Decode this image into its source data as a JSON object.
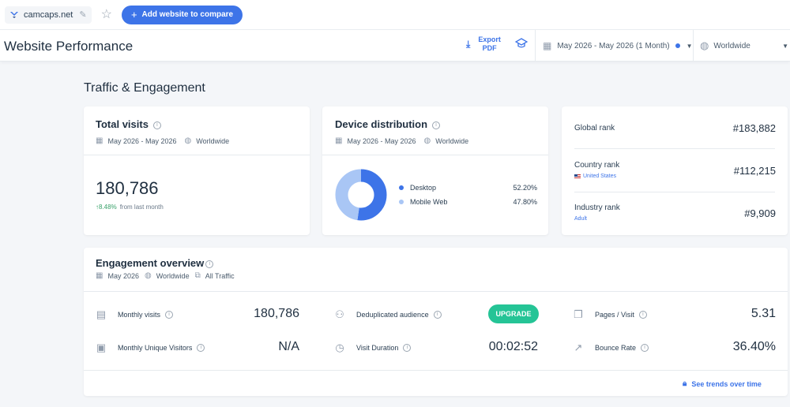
{
  "topbar": {
    "site_name": "camcaps.net",
    "add_button_label": "Add website to compare"
  },
  "header": {
    "title": "Website Performance",
    "export_line1": "Export",
    "export_line2": "PDF",
    "date_range": "May 2026 - May 2026 (1 Month)",
    "region": "Worldwide"
  },
  "section": {
    "title": "Traffic & Engagement"
  },
  "total_visits": {
    "title": "Total visits",
    "date": "May 2026 - May 2026",
    "region": "Worldwide",
    "value": "180,786",
    "change": "8.48%",
    "change_suffix": "from last month"
  },
  "device_distribution": {
    "title": "Device distribution",
    "date": "May 2026 - May 2026",
    "region": "Worldwide",
    "items": [
      {
        "label": "Desktop",
        "value": "52.20%",
        "percent": 52.2,
        "color": "#3d74e8"
      },
      {
        "label": "Mobile Web",
        "value": "47.80%",
        "percent": 47.8,
        "color": "#a9c6f5"
      }
    ]
  },
  "ranks": {
    "global_label": "Global rank",
    "global_value": "#183,882",
    "country_label": "Country rank",
    "country_sub": "United States",
    "country_value": "#112,215",
    "industry_label": "Industry rank",
    "industry_sub": "Adult",
    "industry_value": "#9,909"
  },
  "engagement": {
    "title": "Engagement overview",
    "date": "May 2026",
    "region": "Worldwide",
    "traffic": "All Traffic",
    "monthly_visits_label": "Monthly visits",
    "monthly_visits_value": "180,786",
    "unique_visitors_label": "Monthly Unique Visitors",
    "unique_visitors_value": "N/A",
    "dedup_label": "Deduplicated audience",
    "upgrade_label": "UPGRADE",
    "visit_duration_label": "Visit Duration",
    "visit_duration_value": "00:02:52",
    "pages_visit_label": "Pages / Visit",
    "pages_visit_value": "5.31",
    "bounce_rate_label": "Bounce Rate",
    "bounce_rate_value": "36.40%",
    "trends_label": "See trends over time"
  },
  "colors": {
    "accent": "#3d74e8",
    "positive": "#38a169",
    "upgrade": "#25c496",
    "mobile": "#a9c6f5"
  }
}
